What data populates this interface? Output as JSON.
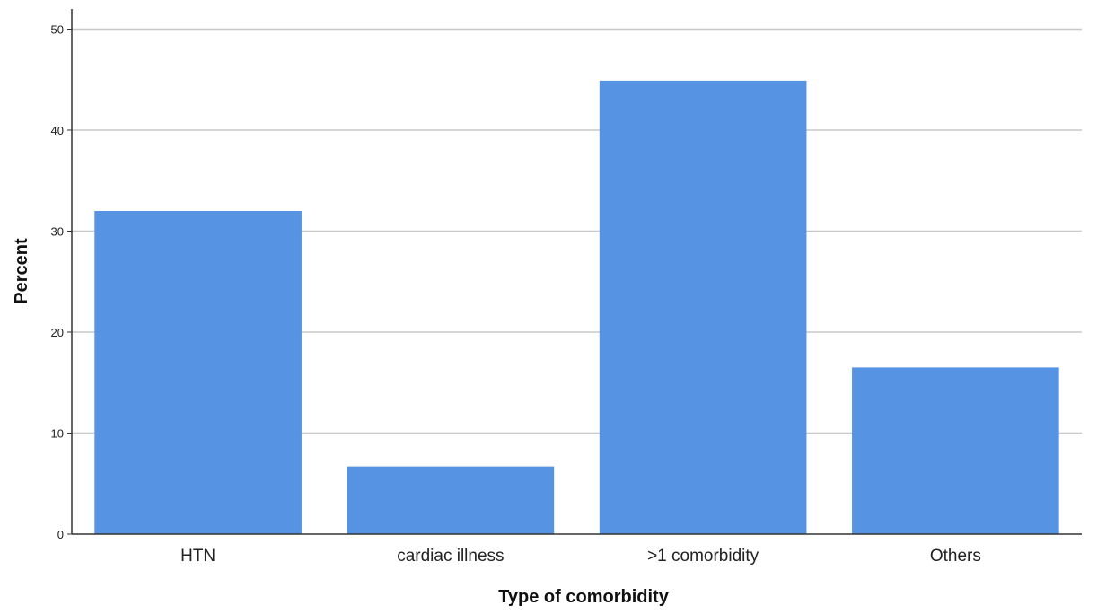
{
  "chart_data": {
    "type": "bar",
    "title": "",
    "xlabel": "Type of comorbidity",
    "ylabel": "Percent",
    "categories": [
      "HTN",
      "cardiac illness",
      ">1 comorbidity",
      "Others"
    ],
    "values": [
      32.0,
      6.7,
      44.9,
      16.5
    ],
    "ylim": [
      0,
      52
    ],
    "yticks": [
      0,
      10,
      20,
      30,
      40,
      50
    ],
    "grid": true,
    "legend": "none",
    "bar_color": "#5693e3",
    "gridline_color": "#c8c8c8",
    "axis_color": "#333333"
  }
}
